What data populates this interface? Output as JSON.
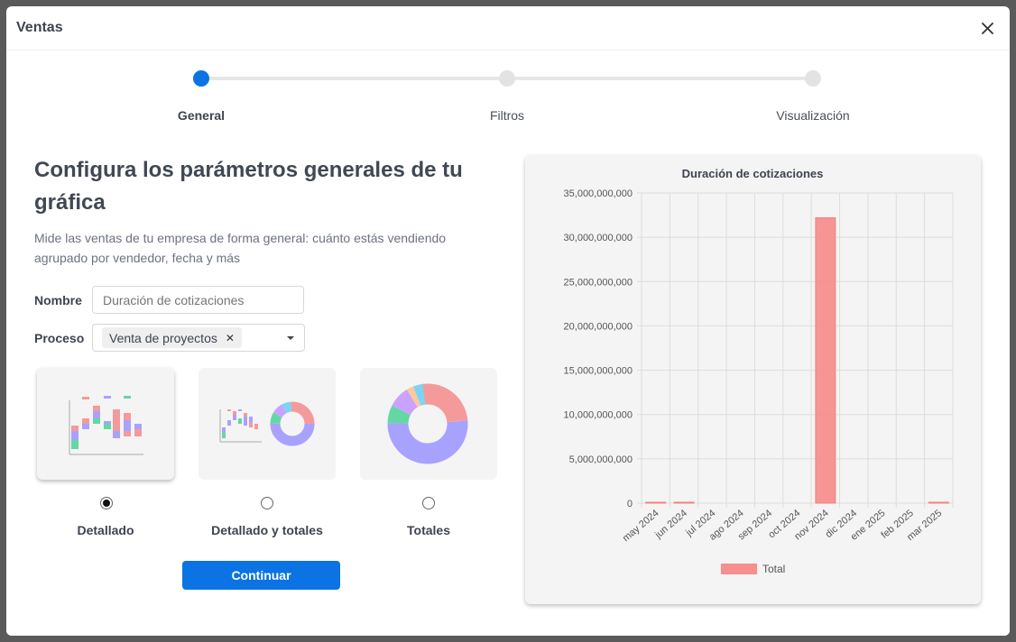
{
  "modal": {
    "title": "Ventas",
    "close_icon": "close-icon"
  },
  "stepper": {
    "steps": [
      {
        "label": "General",
        "active": true
      },
      {
        "label": "Filtros",
        "active": false
      },
      {
        "label": "Visualización",
        "active": false
      }
    ]
  },
  "main": {
    "heading": "Configura los parámetros generales de tu gráfica",
    "description": "Mide las ventas de tu empresa de forma general: cuánto estás vendiendo agrupado por vendedor, fecha y más"
  },
  "form": {
    "name_label": "Nombre",
    "name_placeholder": "Duración de cotizaciones",
    "name_value": "",
    "process_label": "Proceso",
    "process_chip": "Venta de proyectos",
    "process_chip_remove": "✕"
  },
  "options": [
    {
      "label": "Detallado",
      "selected": true
    },
    {
      "label": "Detallado y totales",
      "selected": false
    },
    {
      "label": "Totales",
      "selected": false
    }
  ],
  "continue_label": "Continuar",
  "colors": {
    "accent": "#0b73e3",
    "bar": "#f78f8f"
  },
  "chart_data": {
    "type": "bar",
    "title": "Duración de cotizaciones",
    "categories": [
      "may 2024",
      "jun 2024",
      "jul 2024",
      "ago 2024",
      "sep 2024",
      "oct 2024",
      "nov 2024",
      "dic 2024",
      "ene 2025",
      "feb 2025",
      "mar 2025"
    ],
    "series": [
      {
        "name": "Total",
        "values": [
          60000000,
          60000000,
          0,
          0,
          0,
          0,
          32200000000,
          0,
          0,
          0,
          60000000
        ]
      }
    ],
    "ylim": [
      0,
      35000000000
    ],
    "yticks": [
      "0",
      "5,000,000,000",
      "10,000,000,000",
      "15,000,000,000",
      "20,000,000,000",
      "25,000,000,000",
      "30,000,000,000",
      "35,000,000,000"
    ],
    "grid": true,
    "legend": "bottom"
  }
}
